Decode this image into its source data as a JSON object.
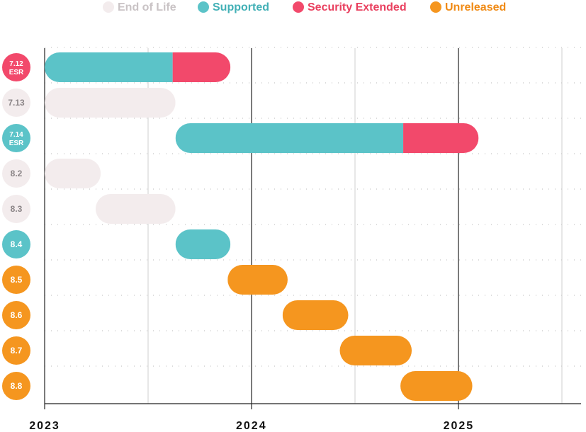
{
  "legend": [
    {
      "label": "End of Life",
      "status": "eol"
    },
    {
      "label": "Supported",
      "status": "supported"
    },
    {
      "label": "Security Extended",
      "status": "security"
    },
    {
      "label": "Unreleased",
      "status": "unreleased"
    }
  ],
  "colors": {
    "eol": "#f3eced",
    "supported": "#5bc3c8",
    "security": "#f2496b",
    "unreleased": "#f5961f",
    "eol_badge_text": "#8a8486",
    "eol_legend_text": "#c9c3c5",
    "supported_legend_text": "#42b0b6",
    "security_legend_text": "#e9405f",
    "unreleased_legend_text": "#f08a14"
  },
  "chart_data": {
    "type": "gantt",
    "x_axis": {
      "type": "time",
      "range": [
        "2023-01-01",
        "2025-07-01"
      ],
      "ticks": [
        "2023",
        "2024",
        "2025"
      ]
    },
    "grid": {
      "vertical": "half-year",
      "horizontal": "dotted"
    },
    "rows": [
      {
        "version": "7.12",
        "sub": "ESR",
        "badge": "security",
        "segments": [
          {
            "status": "supported",
            "start": "2023-01-01",
            "end": "2023-08-15"
          },
          {
            "status": "security",
            "start": "2023-08-15",
            "end": "2023-11-25"
          }
        ]
      },
      {
        "version": "7.13",
        "sub": "",
        "badge": "eol",
        "segments": [
          {
            "status": "eol",
            "start": "2023-01-01",
            "end": "2023-08-20"
          }
        ]
      },
      {
        "version": "7.14",
        "sub": "ESR",
        "badge": "supported",
        "segments": [
          {
            "status": "supported",
            "start": "2023-08-20",
            "end": "2024-09-25"
          },
          {
            "status": "security",
            "start": "2024-09-25",
            "end": "2025-02-05"
          }
        ]
      },
      {
        "version": "8.2",
        "sub": "",
        "badge": "eol",
        "segments": [
          {
            "status": "eol",
            "start": "2023-01-01",
            "end": "2023-04-10"
          }
        ]
      },
      {
        "version": "8.3",
        "sub": "",
        "badge": "eol",
        "segments": [
          {
            "status": "eol",
            "start": "2023-04-01",
            "end": "2023-08-20"
          }
        ]
      },
      {
        "version": "8.4",
        "sub": "",
        "badge": "supported",
        "segments": [
          {
            "status": "supported",
            "start": "2023-08-20",
            "end": "2023-11-25"
          }
        ]
      },
      {
        "version": "8.5",
        "sub": "",
        "badge": "unreleased",
        "segments": [
          {
            "status": "unreleased",
            "start": "2023-11-20",
            "end": "2024-03-05"
          }
        ]
      },
      {
        "version": "8.6",
        "sub": "",
        "badge": "unreleased",
        "segments": [
          {
            "status": "unreleased",
            "start": "2024-02-25",
            "end": "2024-06-20"
          }
        ]
      },
      {
        "version": "8.7",
        "sub": "",
        "badge": "unreleased",
        "segments": [
          {
            "status": "unreleased",
            "start": "2024-06-05",
            "end": "2024-10-10"
          }
        ]
      },
      {
        "version": "8.8",
        "sub": "",
        "badge": "unreleased",
        "segments": [
          {
            "status": "unreleased",
            "start": "2024-09-20",
            "end": "2025-01-25"
          }
        ]
      }
    ]
  }
}
